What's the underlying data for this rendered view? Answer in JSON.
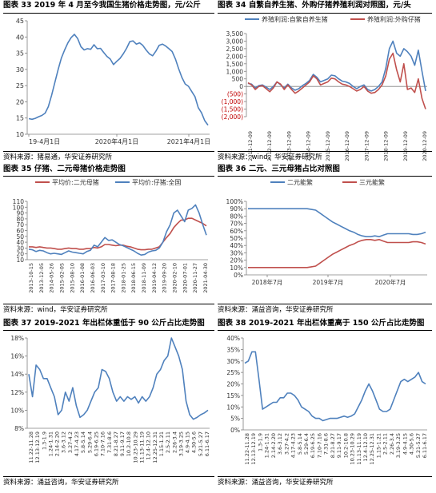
{
  "colors": {
    "blue": "#4f81bd",
    "red": "#c0504d",
    "grid": "#d9d9d9",
    "axis": "#808080"
  },
  "charts": [
    {
      "title": "图表 33 2019 年 4 月至今我国生猪价格走势图，元/公斤",
      "source": "资料来源：猪易通，华安证券研究所",
      "chart_data": {
        "type": "line",
        "title": "图表 33 2019 年 4 月至今我国生猪价格走势图，元/公斤",
        "yticks": [
          "45",
          "40",
          "35",
          "30",
          "25",
          "20",
          "15",
          "10"
        ],
        "ylim": [
          10,
          45
        ],
        "xticks": [
          "19-4月1日",
          "2020年4月1日",
          "2021年4月1日"
        ],
        "series": [
          {
            "name": "",
            "color": "#4f81bd",
            "values": [
              14.8,
              14.6,
              14.9,
              15.4,
              15.8,
              16.5,
              18.5,
              22,
              26,
              30,
              33.5,
              36,
              38.2,
              39.8,
              40.8,
              39.5,
              37,
              36,
              36.4,
              36.2,
              37.6,
              36.4,
              36.5,
              35.2,
              34,
              33.2,
              31.5,
              32.5,
              33.4,
              34.8,
              36.5,
              38.6,
              38.8,
              37.8,
              38.2,
              37.4,
              36,
              34.8,
              34.2,
              35.6,
              37.4,
              37.8,
              37.2,
              36.4,
              35.5,
              33.2,
              30.2,
              27.5,
              25.5,
              24.8,
              23.2,
              21.6,
              18.2,
              16.6,
              14.2,
              12.8
            ]
          }
        ]
      }
    },
    {
      "title": "图表 34 自繁自养生猪、外购仔猪养殖利润对照图，元/头",
      "source": "资料来源：wind，华安证券研究所",
      "chart_data": {
        "type": "line",
        "title": "图表 34 自繁自养生猪、外购仔猪养殖利润对照图，元/头",
        "legend": [
          "养殖利润:自繁自养生猪",
          "养殖利润:外购仔猪"
        ],
        "yticks": [
          "3,500",
          "3,000",
          "2,500",
          "2,000",
          "1,500",
          "1,000",
          "500",
          "0",
          "(500)",
          "(1,000)",
          "(1,500)",
          "(2,000)"
        ],
        "ylim": [
          -2000,
          3500
        ],
        "xticks": [
          "2011-12-09",
          "2012-12-09",
          "2013-12-09",
          "2014-12-09",
          "2015-12-09",
          "2016-12-09",
          "2017-12-09",
          "2018-12-09",
          "2019-12-09",
          "2020-12-09"
        ],
        "series": [
          {
            "name": "养殖利润:自繁自养生猪",
            "color": "#4f81bd",
            "values": [
              200,
              150,
              -100,
              50,
              100,
              -50,
              -200,
              0,
              300,
              100,
              -100,
              150,
              -100,
              -250,
              -150,
              50,
              200,
              400,
              800,
              600,
              300,
              400,
              500,
              750,
              700,
              500,
              350,
              300,
              200,
              0,
              -150,
              0,
              100,
              -200,
              -300,
              -200,
              0,
              300,
              1200,
              2500,
              3000,
              2200,
              2000,
              2500,
              2300,
              2000,
              1400,
              2400,
              1000,
              -300
            ]
          },
          {
            "name": "养殖利润:外购仔猪",
            "color": "#c0504d",
            "values": [
              250,
              100,
              -200,
              0,
              50,
              -150,
              -350,
              -100,
              300,
              150,
              -200,
              100,
              -200,
              -450,
              -300,
              -100,
              100,
              300,
              700,
              500,
              100,
              200,
              300,
              550,
              500,
              300,
              150,
              100,
              0,
              -150,
              -300,
              -200,
              0,
              -300,
              -450,
              -400,
              -200,
              100,
              700,
              1800,
              2200,
              1100,
              300,
              1500,
              -200,
              -100,
              -400,
              500,
              -800,
              -1500
            ]
          }
        ]
      }
    },
    {
      "title": "图表 35 仔猪、二元母猪价格走势图",
      "source": "资料来源：wind，华安证券研究所",
      "chart_data": {
        "type": "line",
        "title": "图表 35 仔猪、二元母猪价格走势图",
        "legend": [
          "平均价:二元母猪",
          "平均价:仔猪:全国"
        ],
        "yticks": [
          "110",
          "100",
          "90",
          "80",
          "70",
          "60",
          "50",
          "40",
          "30",
          "20",
          "10"
        ],
        "ylim": [
          10,
          110
        ],
        "xticks": [
          "2013-10-15",
          "2013-12-05",
          "2014-05-26",
          "2015-02-05",
          "2015-08-10",
          "2016-01-08",
          "2016-06-03",
          "2017-03-10",
          "2017-08-18",
          "2018-01-25",
          "2018-06-15",
          "2018-11-09",
          "2019-04-12",
          "2019-09-20",
          "2020-02-10",
          "2020-07-01",
          "2020-11-27",
          "2021-04-30"
        ],
        "series": [
          {
            "name": "平均价:二元母猪",
            "color": "#c0504d",
            "values": [
              32,
              32,
              31,
              32,
              31,
              30,
              30,
              29,
              28,
              28,
              29,
              30,
              29,
              29,
              28,
              28,
              29,
              29,
              31,
              30,
              32,
              36,
              36,
              35,
              34,
              35,
              35,
              33,
              32,
              30,
              28,
              27,
              27,
              28,
              28,
              30,
              32,
              40,
              48,
              55,
              65,
              72,
              78,
              78,
              81,
              81,
              78,
              75,
              72,
              68
            ]
          },
          {
            "name": "平均价:仔猪:全国",
            "color": "#4f81bd",
            "values": [
              28,
              27,
              24,
              26,
              25,
              22,
              20,
              21,
              20,
              19,
              22,
              25,
              23,
              22,
              21,
              20,
              24,
              26,
              35,
              32,
              40,
              48,
              43,
              44,
              40,
              36,
              34,
              31,
              28,
              25,
              21,
              18,
              19,
              23,
              25,
              26,
              30,
              40,
              58,
              70,
              90,
              95,
              85,
              75,
              95,
              98,
              104,
              90,
              70,
              52
            ]
          }
        ]
      }
    },
    {
      "title": "图表 36 二元、三元母猪占比对照图",
      "source": "资料来源：涌益咨询，华安证券研究所",
      "chart_data": {
        "type": "line",
        "title": "图表 36 二元、三元母猪占比对照图",
        "legend": [
          "二元能繁",
          "三元能繁"
        ],
        "yticks": [
          "100%",
          "90%",
          "80%",
          "70%",
          "60%",
          "50%",
          "40%",
          "30%",
          "20%",
          "10%",
          "0%"
        ],
        "ylim": [
          0,
          100
        ],
        "xticks": [
          "2018年7月",
          "2019年7月",
          "2020年7月"
        ],
        "series": [
          {
            "name": "二元能繁",
            "color": "#4f81bd",
            "values": [
              90,
              90,
              90,
              90,
              90,
              90,
              90,
              90,
              90,
              90,
              90,
              90,
              90,
              90,
              90,
              89,
              88,
              84,
              80,
              76,
              72,
              69,
              66,
              63,
              60,
              58,
              55,
              53,
              52,
              52,
              53,
              52,
              54,
              56,
              56,
              56,
              56,
              56,
              56,
              55,
              55,
              56,
              58
            ]
          },
          {
            "name": "三元能繁",
            "color": "#c0504d",
            "values": [
              10,
              10,
              10,
              10,
              10,
              10,
              10,
              10,
              10,
              10,
              10,
              10,
              10,
              10,
              10,
              11,
              12,
              16,
              20,
              24,
              28,
              31,
              34,
              37,
              40,
              42,
              45,
              47,
              48,
              48,
              47,
              48,
              46,
              44,
              44,
              44,
              44,
              44,
              44,
              45,
              45,
              44,
              42
            ]
          }
        ]
      }
    },
    {
      "title": "图表 37 2019-2021 年出栏体重低于 90 公斤占比走势图",
      "source": "资料来源：涌益咨询，华安证券研究所",
      "chart_data": {
        "type": "line",
        "title": "图表 37 2019-2021 年出栏体重低于 90 公斤占比走势图",
        "yticks": [
          "18%",
          "16%",
          "14%",
          "12%",
          "10%",
          "8%"
        ],
        "ylim": [
          8,
          18
        ],
        "xticks": [
          "11.22-11.28",
          "12.13-12.19",
          "1.3-1.9",
          "1.24-1.31",
          "2.14-2.20",
          "3.6-3.12",
          "3.27-4.2",
          "4.17-4.23",
          "5.8-5.14",
          "5.29-6.4",
          "6.19-6.25",
          "7.10-7.16",
          "7.31-8.6",
          "8.21-8.27",
          "9.11-9.17",
          "10.2-10.8",
          "10.23-10.29",
          "11.13-11.19",
          "12.4-12.10",
          "12.25-12.31",
          "1.15-1.21",
          "2.5-2.11",
          "2.26-3.4",
          "3.19-3.25",
          "4.9-4.15",
          "4.30-5.6",
          "5.21-5.27",
          "6.11-6.17"
        ],
        "series": [
          {
            "name": "",
            "color": "#4f81bd",
            "values": [
              14,
              11.5,
              15,
              14.5,
              13.5,
              13.5,
              12.5,
              11.5,
              9.5,
              10,
              12,
              11,
              12.5,
              10.5,
              9.2,
              9.5,
              10,
              11,
              12,
              12.5,
              14.5,
              14.3,
              13.5,
              12,
              11,
              11.5,
              11,
              11.5,
              11.2,
              11.5,
              10.8,
              11.5,
              11,
              11.5,
              12.5,
              14,
              14.5,
              15.5,
              16,
              18,
              17,
              16,
              14.5,
              11,
              9.5,
              9,
              9.2,
              9.5,
              9.7,
              10
            ]
          }
        ]
      }
    },
    {
      "title": "图表 38 2019-2021 年出栏体重高于 150 公斤占比走势图",
      "source": "资料来源：涌益咨询，华安证券研究所",
      "chart_data": {
        "type": "line",
        "title": "图表 38 2019-2021 年出栏体重高于 150 公斤占比走势图",
        "yticks": [
          "40%",
          "35%",
          "30%",
          "25%",
          "20%",
          "15%",
          "10%",
          "5%",
          "0%"
        ],
        "ylim": [
          0,
          40
        ],
        "xticks": [
          "11.22-11.28",
          "12.13-12.19",
          "1.3-1.9",
          "1.24-1.31",
          "2.14-2.20",
          "3.6-3.12",
          "3.27-4.2",
          "4.17-4.23",
          "5.8-5.14",
          "5.29-6.4",
          "6.19-6.25",
          "7.10-7.16",
          "7.31-8.6",
          "8.21-8.27",
          "9.11-9.17",
          "10.2-10.8",
          "10.23-10.29",
          "11.13-11.19",
          "12.4-12.10",
          "12.25-12.31",
          "1.15-1.21",
          "2.5-2.11",
          "2.26-3.4",
          "3.19-3.25",
          "4.9-4.15",
          "4.30-5.6",
          "5.21-5.27",
          "6.11-6.17"
        ],
        "series": [
          {
            "name": "",
            "color": "#4f81bd",
            "values": [
              29,
              30,
              34,
              34,
              22,
              9,
              10,
              11,
              12,
              12,
              14,
              14,
              16,
              16,
              15,
              13,
              10,
              9,
              8,
              6,
              5,
              5,
              4,
              4.5,
              5,
              5,
              5,
              5.5,
              6,
              5.5,
              6,
              7,
              10,
              13,
              17,
              20,
              17,
              13,
              9,
              8,
              8,
              9,
              13,
              17,
              21,
              22,
              21,
              22,
              23,
              25,
              21,
              20
            ]
          }
        ]
      }
    }
  ]
}
